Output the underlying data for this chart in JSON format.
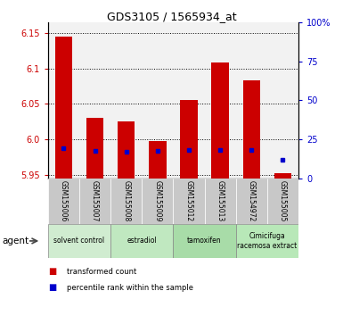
{
  "title": "GDS3105 / 1565934_at",
  "samples": [
    "GSM155006",
    "GSM155007",
    "GSM155008",
    "GSM155009",
    "GSM155012",
    "GSM155013",
    "GSM154972",
    "GSM155005"
  ],
  "red_values": [
    6.145,
    6.03,
    6.025,
    5.998,
    6.056,
    6.108,
    6.083,
    5.952
  ],
  "blue_values": [
    19.5,
    17.5,
    17.0,
    17.5,
    18.5,
    18.5,
    18.5,
    12.0
  ],
  "ylim_left": [
    5.945,
    6.165
  ],
  "ylim_right": [
    0,
    100
  ],
  "yticks_left": [
    5.95,
    6.0,
    6.05,
    6.1,
    6.15
  ],
  "yticks_right": [
    0,
    25,
    50,
    75,
    100
  ],
  "ytick_labels_right": [
    "0",
    "25",
    "50",
    "75",
    "100%"
  ],
  "bar_bottom": 5.945,
  "groups": [
    {
      "label": "solvent control",
      "start": 0,
      "end": 2,
      "color": "#d0ecd0"
    },
    {
      "label": "estradiol",
      "start": 2,
      "end": 4,
      "color": "#c0e8c0"
    },
    {
      "label": "tamoxifen",
      "start": 4,
      "end": 6,
      "color": "#a8dca8"
    },
    {
      "label": "Cimicifuga\nracemosa extract",
      "start": 6,
      "end": 8,
      "color": "#b8e8b8"
    }
  ],
  "red_color": "#cc0000",
  "blue_color": "#0000cc",
  "bar_width": 0.55,
  "background_color": "#ffffff",
  "plot_bg_color": "#f2f2f2",
  "sample_bg_color": "#c8c8c8",
  "left_tick_color": "#cc0000",
  "right_tick_color": "#0000cc",
  "agent_label": "agent",
  "legend_red": "transformed count",
  "legend_blue": "percentile rank within the sample"
}
